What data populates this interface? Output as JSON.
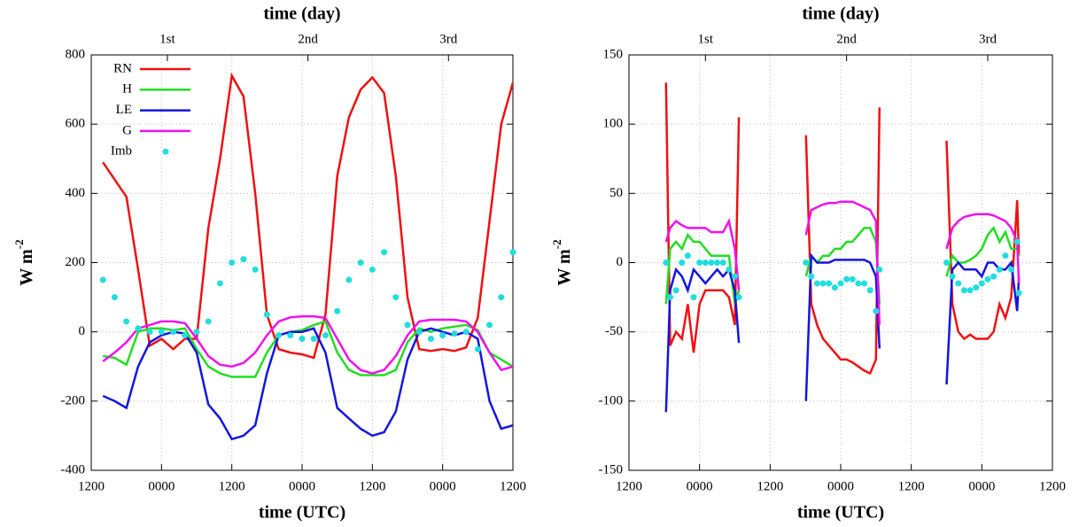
{
  "chart_data": [
    {
      "type": "line",
      "x2label": "time (day)",
      "xlabel": "time (UTC)",
      "ylabel": {
        "text": "W m",
        "superscript": "-2"
      },
      "xlim": [
        0,
        72
      ],
      "ylim": [
        -400,
        800
      ],
      "xticks": [
        {
          "value": 0,
          "label": "1200"
        },
        {
          "value": 12,
          "label": "0000"
        },
        {
          "value": 24,
          "label": "1200"
        },
        {
          "value": 36,
          "label": "0000"
        },
        {
          "value": 48,
          "label": "1200"
        },
        {
          "value": 60,
          "label": "0000"
        },
        {
          "value": 72,
          "label": "1200"
        }
      ],
      "x2ticks": [
        {
          "value": 13,
          "label": "1st"
        },
        {
          "value": 37,
          "label": "2nd"
        },
        {
          "value": 61,
          "label": "3rd"
        }
      ],
      "yticks": [
        -400,
        -200,
        0,
        200,
        400,
        600,
        800
      ],
      "grid": true,
      "legend": "upper left",
      "x": [
        2,
        4,
        6,
        8,
        10,
        12,
        14,
        16,
        18,
        20,
        22,
        24,
        26,
        28,
        30,
        32,
        34,
        36,
        38,
        40,
        42,
        44,
        46,
        48,
        50,
        52,
        54,
        56,
        58,
        60,
        62,
        64,
        66,
        68,
        70,
        72
      ],
      "series": [
        {
          "name": "RN",
          "color": "#ee1111",
          "style": "line",
          "values": [
            490,
            440,
            390,
            180,
            -40,
            -20,
            -50,
            -20,
            -20,
            300,
            500,
            740,
            680,
            400,
            50,
            -50,
            -60,
            -65,
            -75,
            50,
            450,
            620,
            700,
            735,
            690,
            450,
            100,
            -50,
            -55,
            -50,
            -55,
            -45,
            40,
            320,
            600,
            720
          ]
        },
        {
          "name": "H",
          "color": "#22dd22",
          "style": "line",
          "values": [
            -70,
            -75,
            -95,
            0,
            10,
            10,
            5,
            10,
            -50,
            -100,
            -120,
            -130,
            -130,
            -130,
            -60,
            -10,
            0,
            5,
            20,
            30,
            -60,
            -110,
            -125,
            -125,
            -125,
            -110,
            -30,
            10,
            0,
            10,
            15,
            20,
            5,
            -60,
            -80,
            -100
          ]
        },
        {
          "name": "LE",
          "color": "#1515dd",
          "style": "line",
          "values": [
            -185,
            -200,
            -220,
            -100,
            -30,
            -10,
            0,
            -5,
            -60,
            -210,
            -250,
            -310,
            -300,
            -270,
            -120,
            -10,
            0,
            0,
            10,
            -60,
            -220,
            -250,
            -280,
            -300,
            -290,
            -230,
            -80,
            0,
            10,
            0,
            -10,
            0,
            -20,
            -200,
            -280,
            -270
          ]
        },
        {
          "name": "G",
          "color": "#ee11ee",
          "style": "line",
          "values": [
            -85,
            -60,
            -30,
            10,
            20,
            30,
            30,
            25,
            -20,
            -70,
            -95,
            -100,
            -90,
            -60,
            -10,
            30,
            42,
            45,
            45,
            40,
            -20,
            -80,
            -110,
            -120,
            -110,
            -70,
            -10,
            30,
            35,
            35,
            35,
            30,
            0,
            -60,
            -110,
            -100
          ]
        },
        {
          "name": "Imb",
          "color": "#22dddd",
          "style": "points",
          "values": [
            150,
            100,
            30,
            10,
            0,
            0,
            0,
            -10,
            0,
            30,
            140,
            200,
            210,
            180,
            50,
            -10,
            -10,
            -20,
            -20,
            -10,
            60,
            150,
            200,
            180,
            230,
            100,
            20,
            0,
            -20,
            -10,
            -5,
            0,
            -50,
            20,
            100,
            230
          ]
        }
      ]
    },
    {
      "type": "line",
      "x2label": "time (day)",
      "xlabel": "time (UTC)",
      "ylabel": {
        "text": "W m",
        "superscript": "-2"
      },
      "xlim": [
        0,
        72
      ],
      "ylim": [
        -150,
        150
      ],
      "xticks": [
        {
          "value": 0,
          "label": "1200"
        },
        {
          "value": 12,
          "label": "0000"
        },
        {
          "value": 24,
          "label": "1200"
        },
        {
          "value": 36,
          "label": "0000"
        },
        {
          "value": 48,
          "label": "1200"
        },
        {
          "value": 60,
          "label": "0000"
        },
        {
          "value": 72,
          "label": "1200"
        }
      ],
      "x2ticks": [
        {
          "value": 13,
          "label": "1st"
        },
        {
          "value": 37,
          "label": "2nd"
        },
        {
          "value": 61,
          "label": "3rd"
        }
      ],
      "yticks": [
        -150,
        -100,
        -50,
        0,
        50,
        100,
        150
      ],
      "grid": true,
      "x": [
        6.3,
        7,
        8,
        9,
        10,
        11,
        12,
        13,
        14,
        15,
        16,
        17,
        18,
        18.7,
        24,
        30.1,
        31,
        32,
        33,
        34,
        35,
        36,
        37,
        38,
        39,
        40,
        41,
        42,
        42.6,
        48,
        54,
        55,
        56,
        57,
        58,
        59,
        60,
        61,
        62,
        63,
        64,
        65,
        66,
        66.3
      ],
      "series": [
        {
          "color": "#ee1111",
          "style": "line",
          "values": [
            130,
            -60,
            -50,
            -55,
            -30,
            -65,
            -30,
            -20,
            -20,
            -20,
            -20,
            -25,
            -45,
            105,
            null,
            92,
            -30,
            -45,
            -55,
            -60,
            -65,
            -70,
            -70,
            -72,
            -75,
            -78,
            -80,
            -70,
            112,
            null,
            88,
            -30,
            -50,
            -55,
            -52,
            -55,
            -55,
            -55,
            -50,
            -30,
            -40,
            -25,
            45,
            5
          ]
        },
        {
          "color": "#22dd22",
          "style": "line",
          "values": [
            -30,
            10,
            15,
            10,
            20,
            15,
            15,
            10,
            5,
            5,
            5,
            5,
            -30,
            -20,
            null,
            -10,
            5,
            0,
            5,
            5,
            10,
            10,
            15,
            15,
            20,
            25,
            25,
            15,
            -30,
            null,
            -10,
            5,
            0,
            0,
            2,
            5,
            10,
            20,
            25,
            15,
            22,
            10,
            10,
            5
          ]
        },
        {
          "color": "#1515dd",
          "style": "line",
          "values": [
            -108,
            -20,
            -5,
            -10,
            -20,
            -5,
            -10,
            -15,
            -10,
            -5,
            -10,
            -5,
            -20,
            -58,
            null,
            -100,
            5,
            0,
            0,
            0,
            2,
            2,
            2,
            2,
            2,
            2,
            0,
            -10,
            -62,
            null,
            -88,
            -5,
            0,
            -5,
            -5,
            -5,
            -10,
            0,
            0,
            -5,
            -5,
            0,
            -35,
            -10
          ]
        },
        {
          "color": "#ee11ee",
          "style": "line",
          "values": [
            15,
            25,
            30,
            27,
            25,
            25,
            25,
            25,
            22,
            22,
            22,
            30,
            10,
            -20,
            null,
            20,
            38,
            40,
            42,
            43,
            43,
            44,
            44,
            44,
            42,
            40,
            38,
            30,
            -45,
            null,
            10,
            25,
            30,
            33,
            34,
            35,
            35,
            35,
            34,
            32,
            30,
            25,
            15,
            -15
          ]
        },
        {
          "color": "#22dddd",
          "style": "points",
          "values": [
            0,
            -25,
            -20,
            0,
            5,
            -25,
            0,
            0,
            0,
            0,
            0,
            -5,
            -10,
            -25,
            null,
            0,
            -10,
            -15,
            -15,
            -15,
            -18,
            -15,
            -12,
            -12,
            -15,
            -15,
            -20,
            -35,
            -5,
            null,
            0,
            -10,
            -15,
            -20,
            -20,
            -18,
            -15,
            -12,
            -10,
            -5,
            5,
            -5,
            15,
            -22
          ]
        }
      ]
    }
  ]
}
